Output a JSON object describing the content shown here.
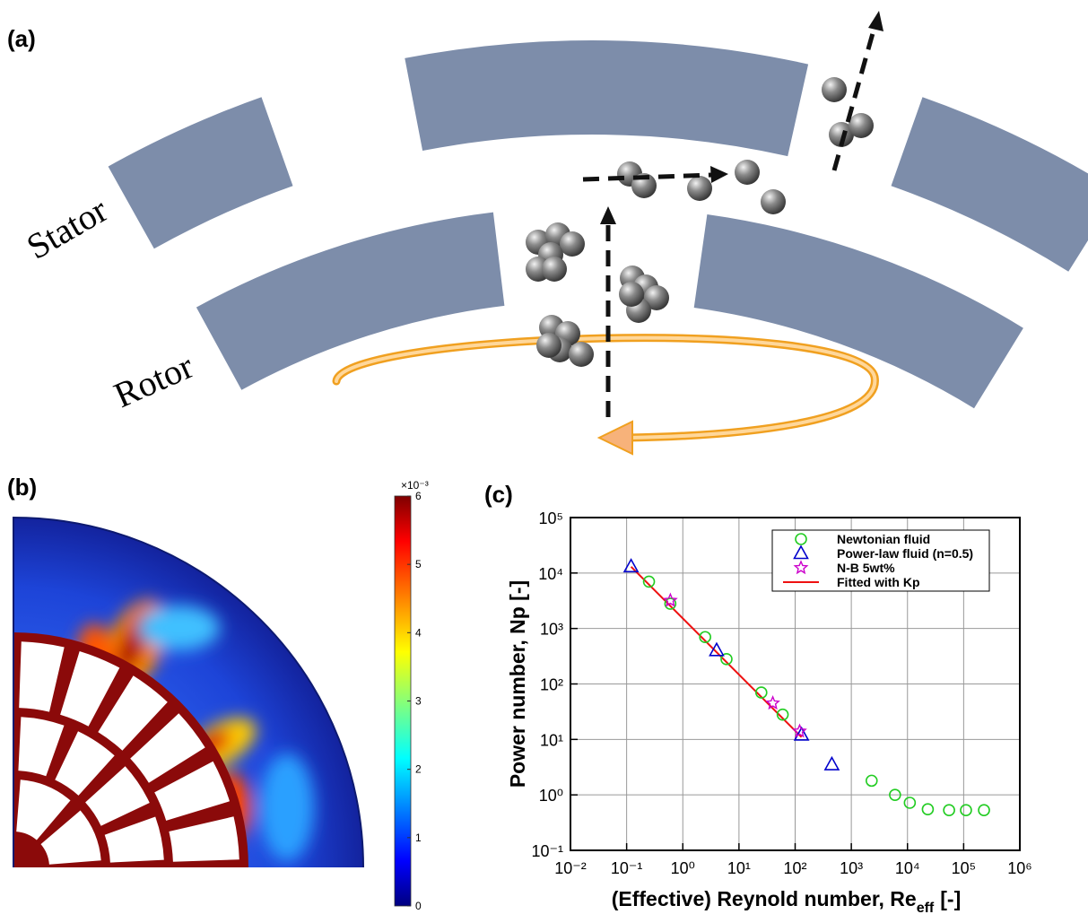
{
  "panel_labels": {
    "a": "(a)",
    "b": "(b)",
    "c": "(c)"
  },
  "diagram": {
    "stator_label": "Stator",
    "rotor_label": "Rotor"
  },
  "colorbar": {
    "multiplier": "×10⁻³",
    "lim": [
      0,
      6
    ],
    "ticks": [
      0,
      1,
      2,
      3,
      4,
      5,
      6
    ]
  },
  "chart_data": {
    "type": "scatter",
    "xlabel": {
      "text": "(Effective) Reynold number, Re",
      "subscript": "eff",
      "suffix": "[-]"
    },
    "ylabel": "Power number, Np [-]",
    "xlog": true,
    "ylog": true,
    "grid": true,
    "legend": "upper right",
    "xlim": [
      0.01,
      1000000
    ],
    "ylim": [
      0.1,
      100000
    ],
    "xticks": [
      {
        "value": 0.01,
        "label": "10⁻²"
      },
      {
        "value": 0.1,
        "label": "10⁻¹"
      },
      {
        "value": 1,
        "label": "10⁰"
      },
      {
        "value": 10,
        "label": "10¹"
      },
      {
        "value": 100,
        "label": "10²"
      },
      {
        "value": 1000,
        "label": "10³"
      },
      {
        "value": 10000,
        "label": "10⁴"
      },
      {
        "value": 100000,
        "label": "10⁵"
      },
      {
        "value": 1000000,
        "label": "10⁶"
      }
    ],
    "yticks": [
      {
        "value": 0.1,
        "label": "10⁻¹"
      },
      {
        "value": 1,
        "label": "10⁰"
      },
      {
        "value": 10,
        "label": "10¹"
      },
      {
        "value": 100,
        "label": "10²"
      },
      {
        "value": 1000,
        "label": "10³"
      },
      {
        "value": 10000,
        "label": "10⁴"
      },
      {
        "value": 100000,
        "label": "10⁵"
      }
    ],
    "series": [
      {
        "name": "Newtonian fluid",
        "color": "#22cc22",
        "marker": "circle",
        "x": [
          0.25,
          0.6,
          2.5,
          6,
          25,
          60,
          2300,
          6000,
          11000,
          23000,
          55000,
          110000,
          230000
        ],
        "values": [
          7000,
          2800,
          700,
          280,
          70,
          28,
          1.8,
          1.0,
          0.72,
          0.55,
          0.53,
          0.53,
          0.53
        ]
      },
      {
        "name": "Power-law fluid (n=0.5)",
        "color": "#0000cc",
        "marker": "triangle",
        "x": [
          0.12,
          4,
          130,
          450
        ],
        "values": [
          13000,
          400,
          12,
          3.5
        ]
      },
      {
        "name": "N-B 5wt%",
        "color": "#cc00cc",
        "marker": "star",
        "x": [
          0.6,
          40,
          120
        ],
        "values": [
          3200,
          45,
          14
        ]
      },
      {
        "name": "Fitted with Kp",
        "color": "#ee1111",
        "marker": "line",
        "x": [
          0.12,
          130
        ],
        "values": [
          13000,
          11
        ]
      }
    ]
  }
}
